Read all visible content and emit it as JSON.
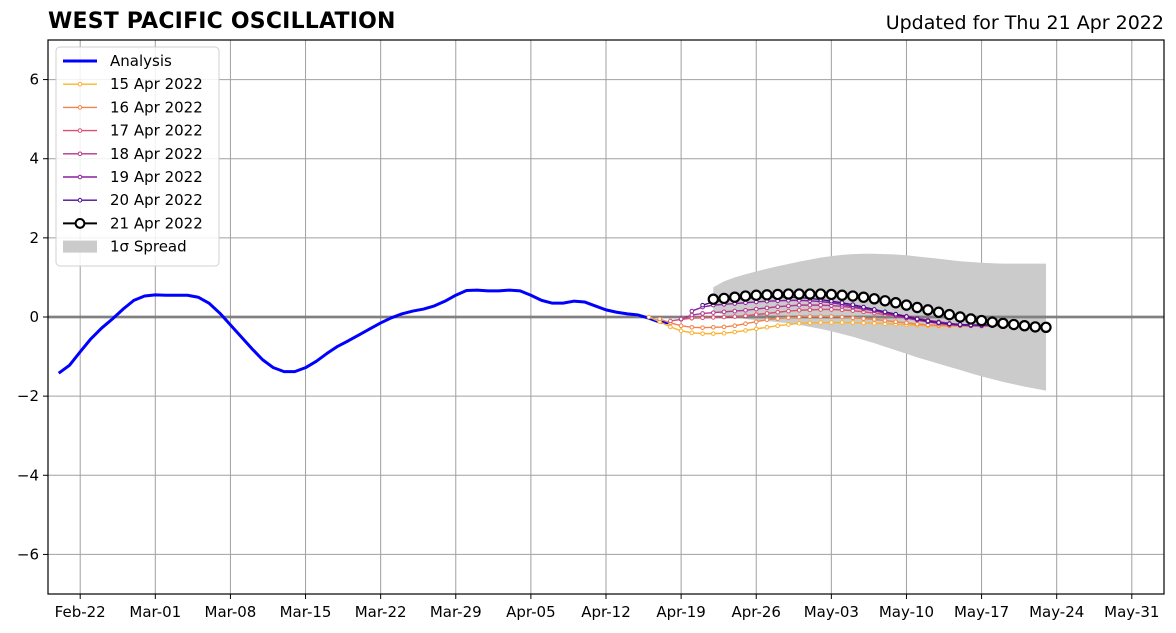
{
  "chart_data": {
    "type": "line",
    "title": "WEST PACIFIC OSCILLATION",
    "subtitle": "Updated for Thu 21 Apr 2022",
    "xlabel": "",
    "ylabel": "",
    "ylim": [
      -7,
      7
    ],
    "xlim": [
      "2022-02-19",
      "2022-06-03"
    ],
    "grid": true,
    "legend_position": "top-left",
    "x_ticks": [
      "Feb-22",
      "Mar-01",
      "Mar-08",
      "Mar-15",
      "Mar-22",
      "Mar-29",
      "Apr-05",
      "Apr-12",
      "Apr-19",
      "Apr-26",
      "May-03",
      "May-10",
      "May-17",
      "May-24",
      "May-31"
    ],
    "y_ticks": [
      "6",
      "4",
      "2",
      "0",
      "−2",
      "−4",
      "−6"
    ],
    "y_tick_values": [
      6,
      4,
      2,
      0,
      -2,
      -4,
      -6
    ],
    "analysis": {
      "name": "Analysis",
      "color": "#0000ff",
      "start_date": "2022-02-20",
      "values": [
        -1.42,
        -1.22,
        -0.88,
        -0.55,
        -0.28,
        -0.05,
        0.2,
        0.42,
        0.53,
        0.56,
        0.55,
        0.55,
        0.55,
        0.5,
        0.35,
        0.1,
        -0.2,
        -0.5,
        -0.8,
        -1.08,
        -1.28,
        -1.38,
        -1.38,
        -1.28,
        -1.12,
        -0.92,
        -0.74,
        -0.6,
        -0.45,
        -0.3,
        -0.15,
        -0.02,
        0.08,
        0.15,
        0.2,
        0.28,
        0.4,
        0.55,
        0.67,
        0.68,
        0.66,
        0.66,
        0.68,
        0.66,
        0.55,
        0.42,
        0.35,
        0.35,
        0.4,
        0.38,
        0.28,
        0.18,
        0.12,
        0.08,
        0.05,
        -0.03,
        -0.13,
        -0.15
      ]
    },
    "forecasts": [
      {
        "name": "15 Apr 2022",
        "color": "#fbb22e",
        "start_date": "2022-04-16",
        "values": [
          0,
          -0.12,
          -0.25,
          -0.35,
          -0.4,
          -0.42,
          -0.42,
          -0.41,
          -0.38,
          -0.34,
          -0.3,
          -0.26,
          -0.22,
          -0.19,
          -0.16,
          -0.15,
          -0.14,
          -0.14,
          -0.14,
          -0.14,
          -0.15,
          -0.16,
          -0.17,
          -0.18,
          -0.2,
          -0.21,
          -0.22,
          -0.23,
          -0.23,
          -0.23,
          -0.23,
          -0.22,
          -0.21,
          -0.21,
          -0.2
        ]
      },
      {
        "name": "16 Apr 2022",
        "color": "#f3834a",
        "start_date": "2022-04-17",
        "values": [
          -0.05,
          -0.15,
          -0.22,
          -0.26,
          -0.27,
          -0.26,
          -0.25,
          -0.22,
          -0.17,
          -0.12,
          -0.07,
          -0.04,
          -0.02,
          0,
          0.01,
          0.01,
          0.01,
          0,
          -0.02,
          -0.04,
          -0.06,
          -0.09,
          -0.12,
          -0.15,
          -0.18,
          -0.2,
          -0.21,
          -0.22,
          -0.22,
          -0.22,
          -0.21,
          -0.2,
          -0.19,
          -0.19
        ]
      },
      {
        "name": "17 Apr 2022",
        "color": "#d95070",
        "start_date": "2022-04-18",
        "values": [
          -0.1,
          -0.06,
          -0.03,
          -0.02,
          -0.01,
          0,
          0.01,
          0.03,
          0.06,
          0.09,
          0.12,
          0.15,
          0.17,
          0.18,
          0.19,
          0.19,
          0.18,
          0.16,
          0.13,
          0.1,
          0.06,
          0.02,
          -0.03,
          -0.08,
          -0.12,
          -0.16,
          -0.19,
          -0.21,
          -0.22,
          -0.23,
          -0.22,
          -0.21,
          -0.2
        ]
      },
      {
        "name": "18 Apr 2022",
        "color": "#b5358f",
        "start_date": "2022-04-19",
        "values": [
          -0.05,
          0.05,
          0.09,
          0.11,
          0.13,
          0.15,
          0.17,
          0.2,
          0.23,
          0.26,
          0.28,
          0.3,
          0.3,
          0.3,
          0.29,
          0.27,
          0.24,
          0.2,
          0.16,
          0.12,
          0.07,
          0.02,
          -0.03,
          -0.08,
          -0.12,
          -0.16,
          -0.19,
          -0.21,
          -0.22,
          -0.22,
          -0.21,
          -0.2
        ]
      },
      {
        "name": "19 Apr 2022",
        "color": "#8a1fa0",
        "start_date": "2022-04-20",
        "values": [
          0.15,
          0.25,
          0.3,
          0.32,
          0.34,
          0.36,
          0.38,
          0.4,
          0.41,
          0.42,
          0.42,
          0.41,
          0.39,
          0.36,
          0.32,
          0.27,
          0.22,
          0.16,
          0.1,
          0.04,
          -0.02,
          -0.07,
          -0.12,
          -0.16,
          -0.19,
          -0.21,
          -0.22,
          -0.22,
          -0.21,
          -0.2
        ]
      },
      {
        "name": "20 Apr 2022",
        "color": "#4b0d8c",
        "start_date": "2022-04-21",
        "values": [
          0.3,
          0.38,
          0.42,
          0.45,
          0.47,
          0.49,
          0.5,
          0.5,
          0.5,
          0.49,
          0.47,
          0.44,
          0.4,
          0.36,
          0.31,
          0.25,
          0.19,
          0.13,
          0.07,
          0.01,
          -0.05,
          -0.1,
          -0.14,
          -0.17,
          -0.19,
          -0.2,
          -0.2,
          -0.19,
          -0.18,
          -0.17
        ]
      },
      {
        "name": "21 Apr 2022",
        "color": "#000000",
        "start_date": "2022-04-22",
        "values": [
          0.45,
          0.47,
          0.5,
          0.53,
          0.55,
          0.56,
          0.57,
          0.58,
          0.58,
          0.58,
          0.58,
          0.57,
          0.55,
          0.53,
          0.5,
          0.46,
          0.41,
          0.36,
          0.3,
          0.24,
          0.18,
          0.12,
          0.06,
          0,
          -0.05,
          -0.09,
          -0.13,
          -0.16,
          -0.19,
          -0.22,
          -0.25,
          -0.26
        ]
      }
    ],
    "spread": {
      "name": "1σ Spread",
      "color": "#cbcbcb",
      "start_date": "2022-04-22",
      "upper": [
        0.75,
        0.9,
        1.0,
        1.08,
        1.15,
        1.22,
        1.28,
        1.34,
        1.4,
        1.45,
        1.5,
        1.54,
        1.57,
        1.59,
        1.6,
        1.6,
        1.59,
        1.58,
        1.56,
        1.53,
        1.5,
        1.47,
        1.44,
        1.41,
        1.39,
        1.37,
        1.36,
        1.35,
        1.35,
        1.35,
        1.35,
        1.35
      ],
      "lower": [
        0.15,
        0.05,
        0,
        -0.05,
        -0.08,
        -0.1,
        -0.13,
        -0.16,
        -0.2,
        -0.25,
        -0.3,
        -0.36,
        -0.43,
        -0.5,
        -0.58,
        -0.66,
        -0.75,
        -0.84,
        -0.93,
        -1.02,
        -1.1,
        -1.18,
        -1.26,
        -1.34,
        -1.42,
        -1.5,
        -1.57,
        -1.64,
        -1.7,
        -1.76,
        -1.81,
        -1.86
      ]
    }
  }
}
